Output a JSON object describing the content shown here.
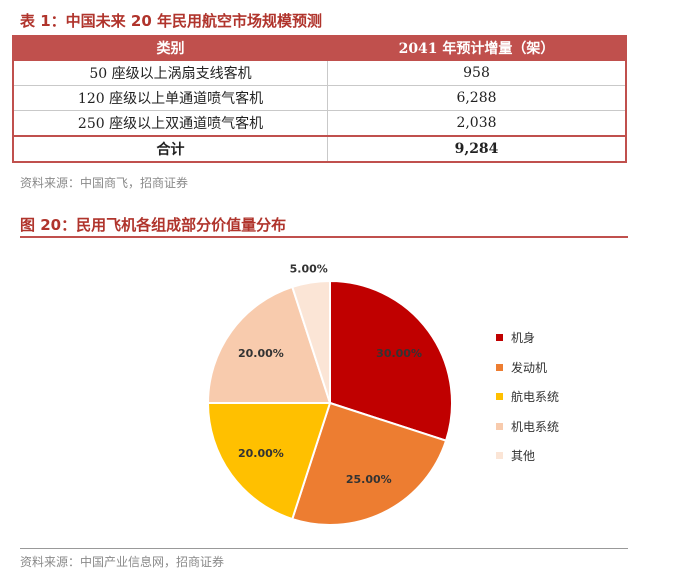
{
  "table": {
    "caption": "表 1：中国未来 20 年民用航空市场规模预测",
    "headers": [
      "类别",
      "2041 年预计增量（架）"
    ],
    "rows": [
      {
        "category": "50 座级以上涡扇支线客机",
        "value": "958"
      },
      {
        "category": "120 座级以上单通道喷气客机",
        "value": "6,288"
      },
      {
        "category": "250 座级以上双通道喷气客机",
        "value": "2,038"
      }
    ],
    "total": {
      "category": "合计",
      "value": "9,284"
    },
    "source": "资料来源：中国商飞，招商证券"
  },
  "figure": {
    "caption": "图 20：民用飞机各组成部分价值量分布",
    "source": "资料来源：中国产业信息网，招商证券"
  },
  "chart_data": {
    "type": "pie",
    "title": "",
    "slices": [
      {
        "name": "机身",
        "value": 30,
        "label": "30.00%",
        "color": "#c00000"
      },
      {
        "name": "发动机",
        "value": 25,
        "label": "25.00%",
        "color": "#ed7d31"
      },
      {
        "name": "航电系统",
        "value": 20,
        "label": "20.00%",
        "color": "#ffc000"
      },
      {
        "name": "机电系统",
        "value": 20,
        "label": "20.00%",
        "color": "#f8cbad"
      },
      {
        "name": "其他",
        "value": 5,
        "label": "5.00%",
        "color": "#fbe5d6"
      }
    ],
    "legend_position": "right"
  }
}
